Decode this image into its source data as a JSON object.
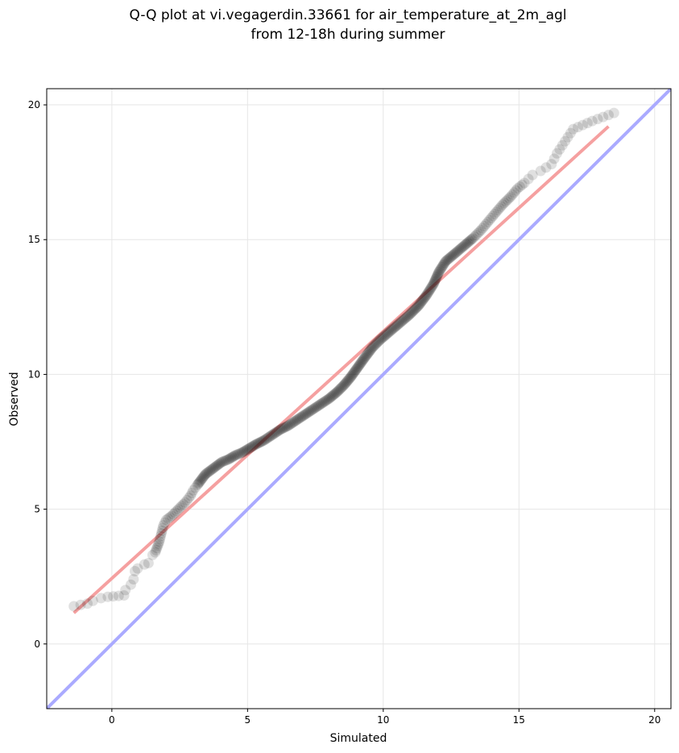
{
  "chart_data": {
    "type": "scatter",
    "title": "Q-Q plot at vi.vegagerdin.33661 for air_temperature_at_2m_agl",
    "subtitle": "from 12-18h during summer",
    "xlabel": "Simulated",
    "ylabel": "Observed",
    "xlim": [
      -2.4,
      20.6
    ],
    "ylim": [
      -2.4,
      20.6
    ],
    "xticks": [
      0,
      5,
      10,
      15,
      20
    ],
    "yticks": [
      0,
      5,
      10,
      15,
      20
    ],
    "grid": true,
    "identity_line": {
      "x": [
        -2.4,
        20.6
      ],
      "y": [
        -2.4,
        20.6
      ],
      "color": "#aaaaff"
    },
    "fit_line": {
      "x": [
        -1.4,
        18.3
      ],
      "y": [
        1.15,
        19.2
      ],
      "color": "#f5a0a0"
    },
    "point_color": "#000000",
    "points": [
      [
        -1.4,
        1.4
      ],
      [
        -0.9,
        1.5
      ],
      [
        -0.7,
        1.6
      ],
      [
        -0.4,
        1.7
      ],
      [
        -0.15,
        1.75
      ],
      [
        0.45,
        1.8
      ],
      [
        0.5,
        2.0
      ],
      [
        0.7,
        2.2
      ],
      [
        0.8,
        2.4
      ],
      [
        0.85,
        2.7
      ],
      [
        0.95,
        2.8
      ],
      [
        1.2,
        2.95
      ],
      [
        1.35,
        3.0
      ],
      [
        1.5,
        3.3
      ],
      [
        1.6,
        3.4
      ],
      [
        1.75,
        3.8
      ],
      [
        1.8,
        4.0
      ],
      [
        1.85,
        4.2
      ],
      [
        1.9,
        4.4
      ],
      [
        2.0,
        4.6
      ],
      [
        2.2,
        4.75
      ],
      [
        2.45,
        5.0
      ],
      [
        2.7,
        5.25
      ],
      [
        2.9,
        5.5
      ],
      [
        3.0,
        5.7
      ],
      [
        3.15,
        5.9
      ],
      [
        3.3,
        6.1
      ],
      [
        3.45,
        6.3
      ],
      [
        3.65,
        6.45
      ],
      [
        3.85,
        6.6
      ],
      [
        4.05,
        6.75
      ],
      [
        4.3,
        6.85
      ],
      [
        4.55,
        7.0
      ],
      [
        4.8,
        7.1
      ],
      [
        5.05,
        7.25
      ],
      [
        5.3,
        7.4
      ],
      [
        5.6,
        7.55
      ],
      [
        5.9,
        7.75
      ],
      [
        6.2,
        7.95
      ],
      [
        6.5,
        8.1
      ],
      [
        6.8,
        8.3
      ],
      [
        7.1,
        8.5
      ],
      [
        7.4,
        8.7
      ],
      [
        7.7,
        8.9
      ],
      [
        8.0,
        9.1
      ],
      [
        8.3,
        9.35
      ],
      [
        8.55,
        9.6
      ],
      [
        8.8,
        9.9
      ],
      [
        9.05,
        10.25
      ],
      [
        9.3,
        10.6
      ],
      [
        9.6,
        11.0
      ],
      [
        9.9,
        11.3
      ],
      [
        10.25,
        11.6
      ],
      [
        10.6,
        11.9
      ],
      [
        10.95,
        12.2
      ],
      [
        11.3,
        12.55
      ],
      [
        11.6,
        12.95
      ],
      [
        11.85,
        13.35
      ],
      [
        12.05,
        13.8
      ],
      [
        12.3,
        14.2
      ],
      [
        12.6,
        14.45
      ],
      [
        12.95,
        14.75
      ],
      [
        13.3,
        15.05
      ],
      [
        13.6,
        15.35
      ],
      [
        13.85,
        15.65
      ],
      [
        14.1,
        15.95
      ],
      [
        14.4,
        16.3
      ],
      [
        14.7,
        16.6
      ],
      [
        14.95,
        16.9
      ],
      [
        15.2,
        17.1
      ],
      [
        15.5,
        17.4
      ],
      [
        15.8,
        17.55
      ],
      [
        16.2,
        17.8
      ],
      [
        16.4,
        18.2
      ],
      [
        16.6,
        18.5
      ],
      [
        16.8,
        18.8
      ],
      [
        17.0,
        19.1
      ],
      [
        17.7,
        19.4
      ],
      [
        18.5,
        19.7
      ]
    ]
  }
}
